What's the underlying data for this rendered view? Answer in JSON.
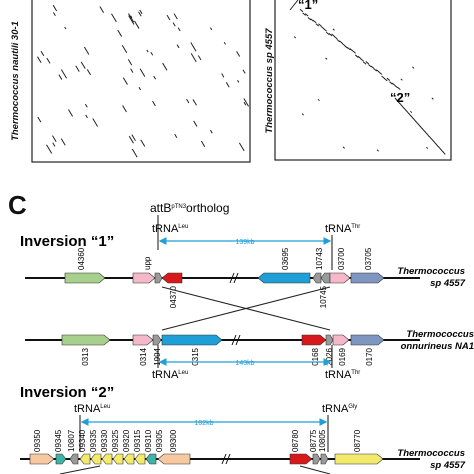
{
  "dotplots": {
    "left_ylabel": "Thermococcus nautili 30-1",
    "right_ylabel": "Thermococcus sp 4557",
    "marker_1": "“1”",
    "marker_2": "“2”"
  },
  "panel_c": {
    "label": "C",
    "attb_prefix": "attB",
    "attb_super": "pTN3",
    "attb_suffix": "ortholog",
    "inv1": {
      "title": "Inversion “1”",
      "trna_left": "tRNA",
      "trna_left_sup": "Leu",
      "trna_right": "tRNA",
      "trna_right_sup": "Thr",
      "span_top": "139kb",
      "span_bottom": "143kb",
      "trna_bottom_left": "tRNA",
      "trna_bottom_left_sup": "Leu",
      "trna_bottom_right": "tRNA",
      "trna_bottom_right_sup": "Thr",
      "org_top_line1": "Thermococcus",
      "org_top_line2": "sp 4557",
      "org_bottom_line1": "Thermococcus",
      "org_bottom_line2": "onnurineus NA1",
      "top_genes": [
        "04360",
        "upp",
        "04370",
        "03695",
        "10743",
        "10745",
        "03700",
        "03705"
      ],
      "bottom_genes": [
        "0313",
        "0314",
        "1994",
        "0315",
        "0168",
        "2026",
        "0169",
        "0170"
      ]
    },
    "inv2": {
      "title": "Inversion “2”",
      "trna_left": "tRNA",
      "trna_left_sup": "Leu",
      "trna_right": "tRNA",
      "trna_right_sup": "Gly",
      "span": "102kb",
      "org_line1": "Thermococcus",
      "org_line2": "sp 4557",
      "genes": [
        "09350",
        "09345",
        "10807",
        "09340",
        "09335",
        "09330",
        "09325",
        "09320",
        "09315",
        "09310",
        "09305",
        "09300",
        "08780",
        "08775",
        "10805",
        "08770"
      ]
    }
  },
  "colors": {
    "green": "#a8d08d",
    "pink": "#f4b8c8",
    "red": "#d7191c",
    "blue": "#1e9fd8",
    "grey": "#9a9a9a",
    "slate": "#7f96c0",
    "yellow": "#f2ea6c",
    "teal": "#3fb3a8",
    "peach": "#f6c9a0",
    "cyan_arrow": "#1f9fd6"
  }
}
